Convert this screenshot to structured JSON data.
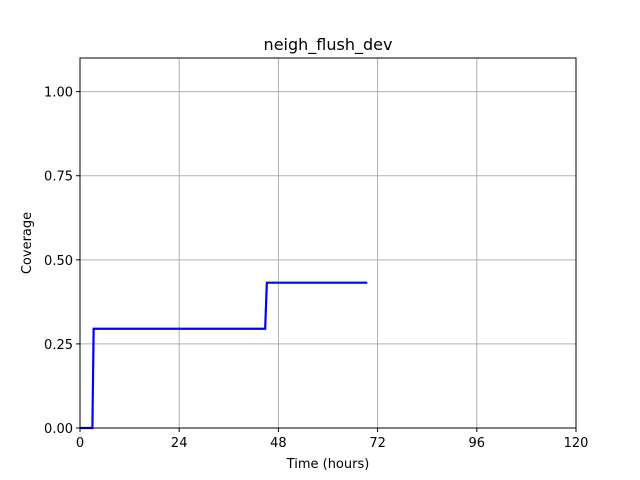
{
  "chart_data": {
    "type": "line",
    "title": "neigh_flush_dev",
    "xlabel": "Time (hours)",
    "ylabel": "Coverage",
    "xlim": [
      0,
      120
    ],
    "ylim": [
      0,
      1.1
    ],
    "xticks": [
      0,
      24,
      48,
      72,
      96,
      120
    ],
    "xtick_labels": [
      "0",
      "24",
      "48",
      "72",
      "96",
      "120"
    ],
    "yticks": [
      0,
      0.25,
      0.5,
      0.75,
      1.0
    ],
    "ytick_labels": [
      "0.00",
      "0.25",
      "0.50",
      "0.75",
      "1.00"
    ],
    "grid": true,
    "series": [
      {
        "color": "#0000ff",
        "x": [
          0,
          3.0,
          3.3,
          44.8,
          45.2,
          69.5
        ],
        "y": [
          0,
          0,
          0.295,
          0.295,
          0.432,
          0.432
        ]
      }
    ]
  }
}
